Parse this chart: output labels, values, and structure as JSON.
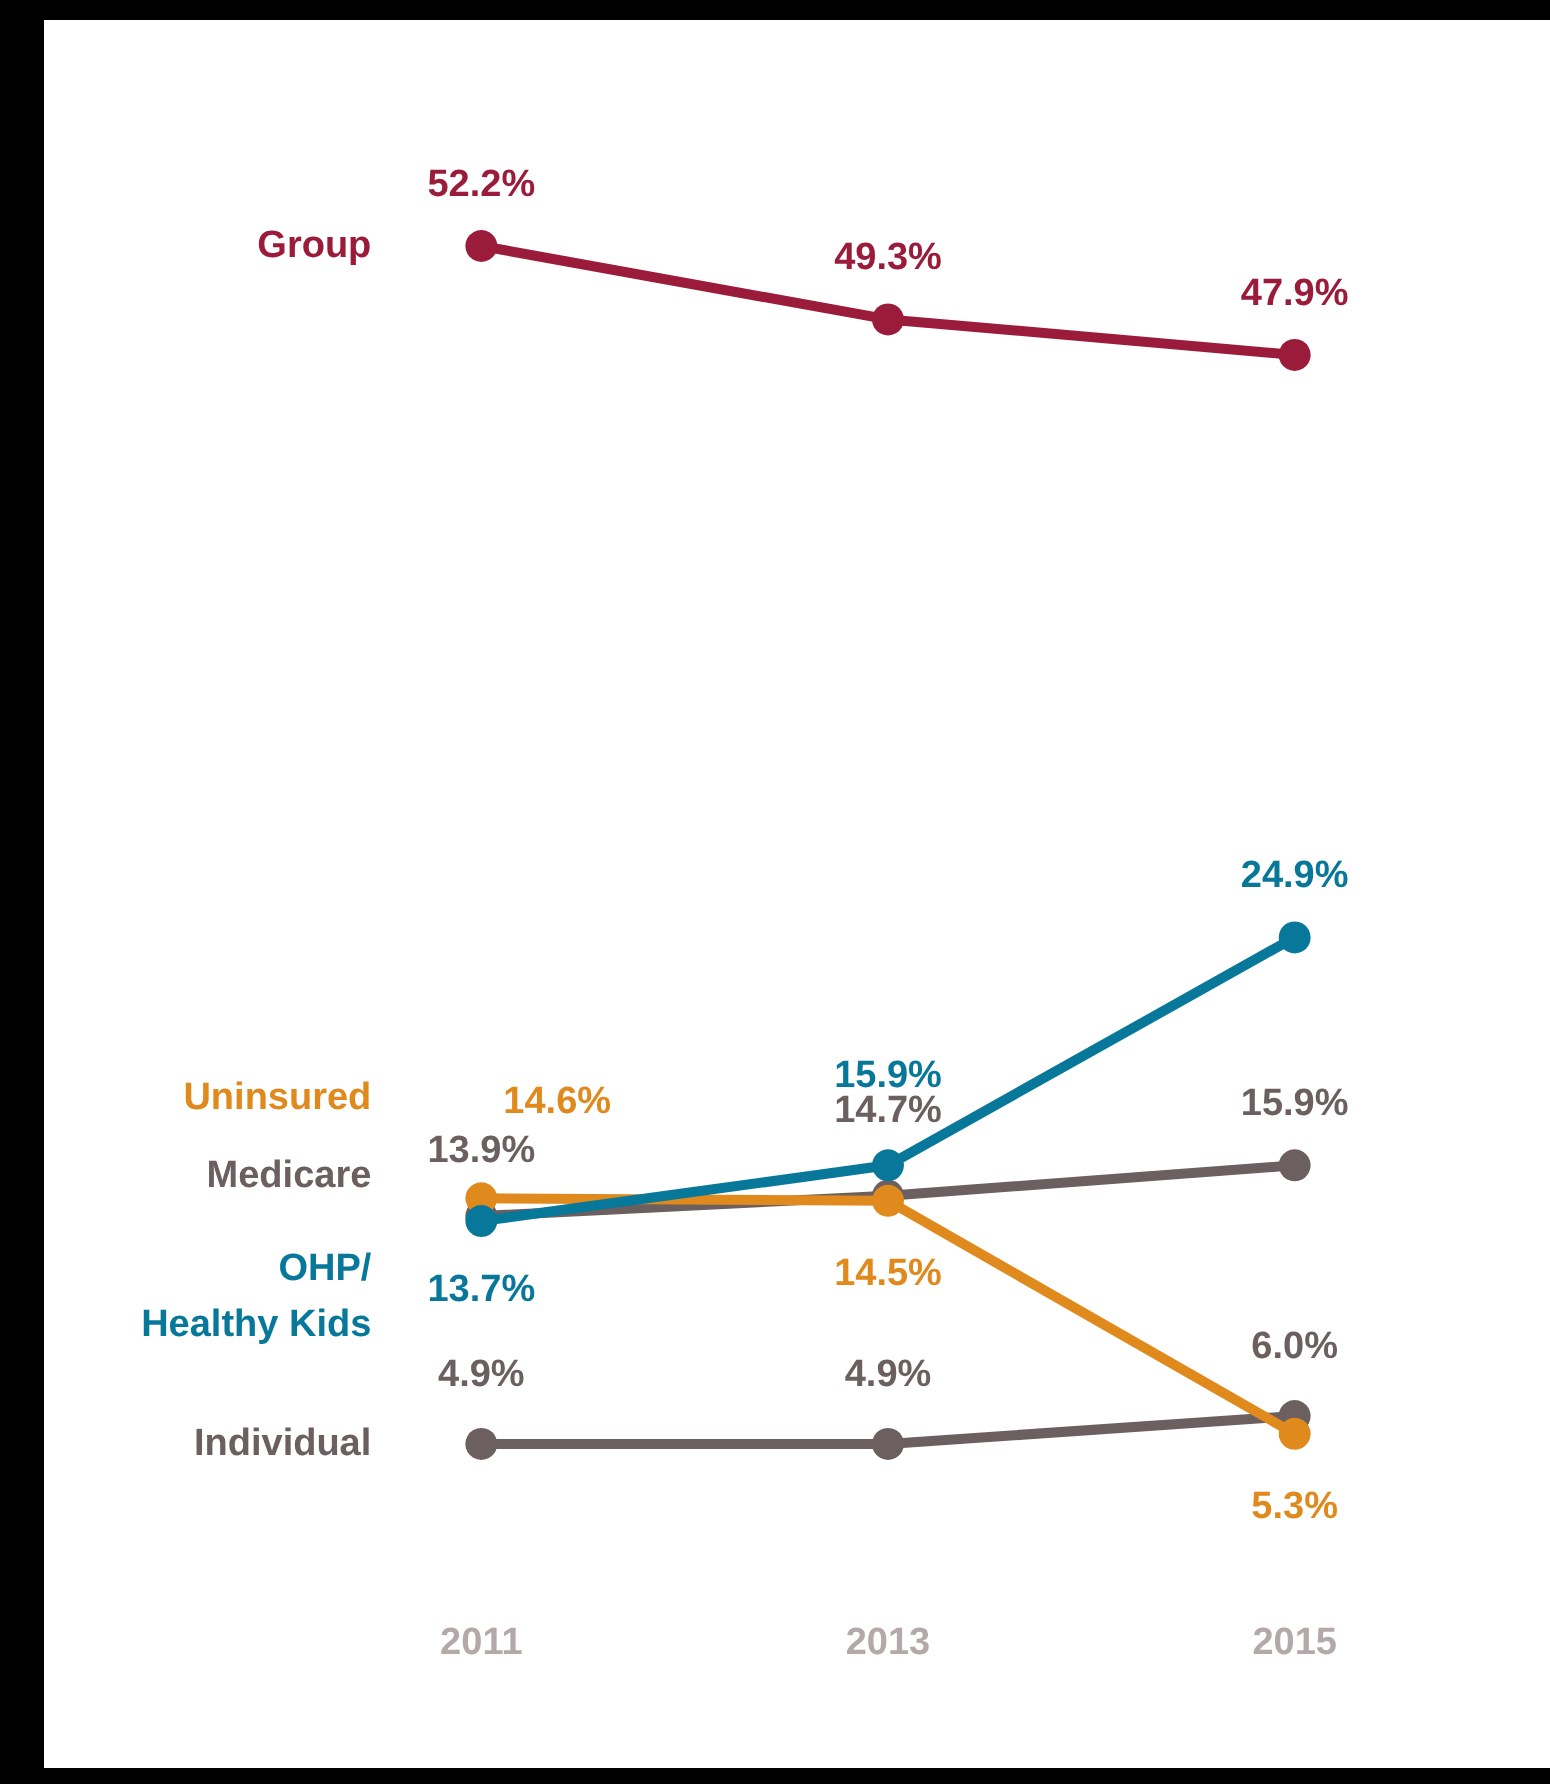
{
  "chart_data": {
    "type": "line",
    "categories": [
      "2011",
      "2013",
      "2015"
    ],
    "series": [
      {
        "name": "Group",
        "color": "#9b1b3b",
        "values": [
          52.2,
          49.3,
          47.9
        ],
        "value_labels": [
          "52.2%",
          "49.3%",
          "47.9%"
        ]
      },
      {
        "name": "OHP/\nHealthy Kids",
        "color": "#08789a",
        "values": [
          13.7,
          15.9,
          24.9
        ],
        "value_labels": [
          "13.7%",
          "15.9%",
          "24.9%"
        ]
      },
      {
        "name": "Uninsured",
        "color": "#e08a1e",
        "values": [
          14.6,
          14.5,
          5.3
        ],
        "value_labels": [
          "14.6%",
          "14.5%",
          "5.3%"
        ]
      },
      {
        "name": "Medicare",
        "color": "#6b5f5f",
        "values": [
          13.9,
          14.7,
          15.9
        ],
        "value_labels": [
          "13.9%",
          "14.7%",
          "15.9%"
        ]
      },
      {
        "name": "Individual",
        "color": "#6b5f5f",
        "values": [
          4.9,
          4.9,
          6.0
        ],
        "value_labels": [
          "4.9%",
          "4.9%",
          "6.0%"
        ]
      }
    ],
    "legend": false,
    "grid": false,
    "marker": "circle",
    "line_style": "solid"
  }
}
